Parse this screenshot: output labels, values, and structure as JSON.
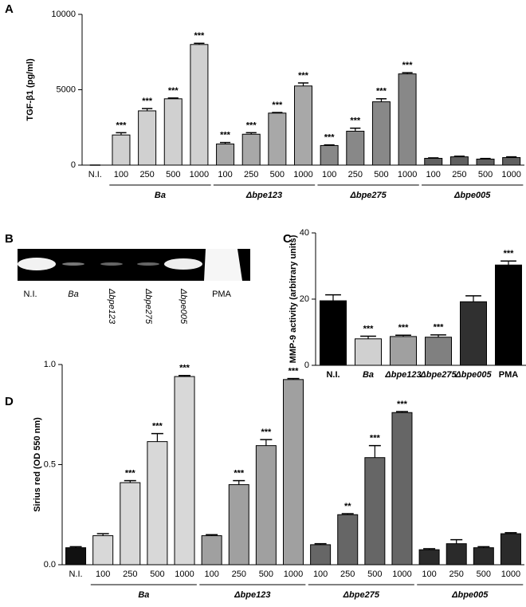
{
  "chart_data": [
    {
      "type": "bar",
      "panel": "A",
      "ylabel": "TGF-β1 (pg/ml)",
      "ylim": [
        0,
        10000
      ],
      "yticks": [
        0,
        5000,
        10000
      ],
      "groups": [
        {
          "label": null,
          "color": "#d0d0d0",
          "categories": [
            "N.I."
          ],
          "values": [
            0
          ],
          "errors": [
            0
          ],
          "annotations": [
            null
          ]
        },
        {
          "label": "Ba",
          "color": "#d0d0d0",
          "categories": [
            "100",
            "250",
            "500",
            "1000"
          ],
          "values": [
            2000,
            3600,
            4400,
            8000
          ],
          "errors": [
            150,
            150,
            50,
            80
          ],
          "annotations": [
            "***",
            "***",
            "***",
            "***"
          ]
        },
        {
          "label": "Δbpe123",
          "color": "#a8a8a8",
          "categories": [
            "100",
            "250",
            "500",
            "1000"
          ],
          "values": [
            1400,
            2050,
            3450,
            5250
          ],
          "errors": [
            100,
            100,
            40,
            200
          ],
          "annotations": [
            "***",
            "***",
            "***",
            "***"
          ]
        },
        {
          "label": "Δbpe275",
          "color": "#888888",
          "categories": [
            "100",
            "250",
            "500",
            "1000"
          ],
          "values": [
            1300,
            2250,
            4200,
            6050
          ],
          "errors": [
            40,
            200,
            200,
            80
          ],
          "annotations": [
            "***",
            "***",
            "***",
            "***"
          ]
        },
        {
          "label": "Δbpe005",
          "color": "#606060",
          "categories": [
            "100",
            "250",
            "500",
            "1000"
          ],
          "values": [
            450,
            550,
            400,
            500
          ],
          "errors": [
            30,
            40,
            40,
            50
          ],
          "annotations": [
            null,
            null,
            null,
            null
          ]
        }
      ]
    },
    {
      "type": "bar",
      "panel": "C",
      "ylabel": "MMP-9 activity (arbitrary units)",
      "ylim": [
        0,
        40
      ],
      "yticks": [
        0,
        20,
        40
      ],
      "categories": [
        "N.I.",
        "Ba",
        "Δbpe123",
        "Δbpe275",
        "Δbpe005",
        "PMA"
      ],
      "values": [
        19.5,
        8,
        8.7,
        8.5,
        19.2,
        30.3
      ],
      "errors": [
        1.8,
        0.8,
        0.4,
        0.7,
        1.8,
        1.2
      ],
      "annotations": [
        null,
        "***",
        "***",
        "***",
        null,
        "***"
      ],
      "colors": [
        "#000000",
        "#d0d0d0",
        "#a0a0a0",
        "#808080",
        "#303030",
        "#000000"
      ]
    },
    {
      "type": "bar",
      "panel": "D",
      "ylabel": "Sirius red (OD 550 nm)",
      "ylim": [
        0,
        1
      ],
      "yticks": [
        {
          "value": 0,
          "label": "0.0"
        },
        {
          "value": 0.5,
          "label": "0.5"
        },
        {
          "value": 1,
          "label": "1.0"
        }
      ],
      "groups": [
        {
          "label": null,
          "color": "#111111",
          "categories": [
            "N.I."
          ],
          "values": [
            0.085
          ],
          "errors": [
            0.005
          ],
          "annotations": [
            null
          ]
        },
        {
          "label": "Ba",
          "color": "#d8d8d8",
          "categories": [
            "100",
            "250",
            "500",
            "1000"
          ],
          "values": [
            0.145,
            0.41,
            0.615,
            0.94
          ],
          "errors": [
            0.01,
            0.01,
            0.04,
            0.005
          ],
          "annotations": [
            null,
            "***",
            "***",
            "***"
          ]
        },
        {
          "label": "Δbpe123",
          "color": "#a0a0a0",
          "categories": [
            "100",
            "250",
            "500",
            "1000"
          ],
          "values": [
            0.145,
            0.4,
            0.595,
            0.925
          ],
          "errors": [
            0.005,
            0.02,
            0.03,
            0.005
          ],
          "annotations": [
            null,
            "***",
            "***",
            "***"
          ]
        },
        {
          "label": "Δbpe275",
          "color": "#666666",
          "categories": [
            "100",
            "250",
            "500",
            "1000"
          ],
          "values": [
            0.1,
            0.25,
            0.535,
            0.76
          ],
          "errors": [
            0.005,
            0.005,
            0.06,
            0.005
          ],
          "annotations": [
            null,
            "**",
            "***",
            "***"
          ]
        },
        {
          "label": "Δbpe005",
          "color": "#2a2a2a",
          "categories": [
            "100",
            "250",
            "500",
            "1000"
          ],
          "values": [
            0.075,
            0.105,
            0.085,
            0.155
          ],
          "errors": [
            0.005,
            0.02,
            0.005,
            0.005
          ],
          "annotations": [
            null,
            null,
            null,
            null
          ]
        }
      ]
    }
  ],
  "gel_panel": {
    "panel": "B",
    "lanes": [
      "N.I.",
      "Ba",
      "Δbpe123",
      "Δbpe275",
      "Δbpe005",
      "PMA"
    ]
  }
}
